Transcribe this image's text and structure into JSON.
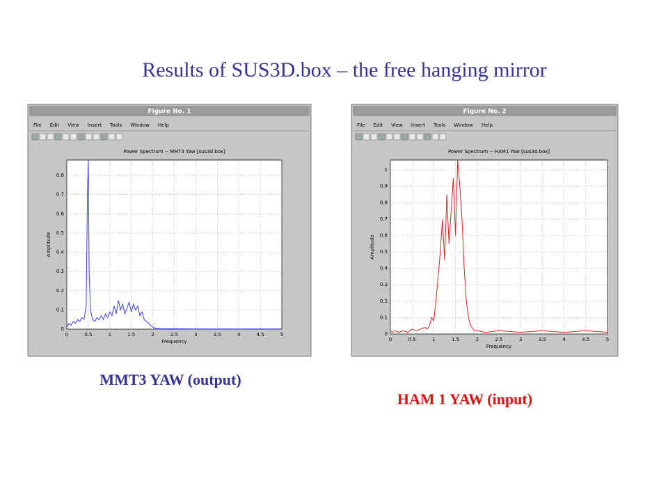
{
  "slide_title": "Results of SUS3D.box – the free hanging mirror",
  "windows": [
    {
      "title": "Figure No. 1",
      "menu": [
        "File",
        "Edit",
        "View",
        "Insert",
        "Tools",
        "Window",
        "Help"
      ]
    },
    {
      "title": "Figure No. 2",
      "menu": [
        "File",
        "Edit",
        "View",
        "Insert",
        "Tools",
        "Window",
        "Help"
      ]
    }
  ],
  "chart_data": [
    {
      "type": "line",
      "title": "Power Spectrum -- MMT3 Yaw [sus3d.box]",
      "xlabel": "Frequency",
      "ylabel": "Amplitude",
      "color": "#3b3bff",
      "grid": true,
      "xlim": [
        0,
        5
      ],
      "xticks": [
        0,
        0.5,
        1,
        1.5,
        2,
        2.5,
        3,
        3.5,
        4,
        4.5,
        5
      ],
      "ylim": [
        0,
        0.88
      ],
      "yticks": [
        0,
        0.1,
        0.2,
        0.3,
        0.4,
        0.5,
        0.6,
        0.7,
        0.8
      ],
      "x": [
        0,
        0.05,
        0.1,
        0.15,
        0.2,
        0.25,
        0.3,
        0.35,
        0.4,
        0.45,
        0.48,
        0.5,
        0.52,
        0.55,
        0.6,
        0.65,
        0.7,
        0.75,
        0.8,
        0.85,
        0.9,
        0.95,
        1,
        1.05,
        1.1,
        1.15,
        1.2,
        1.25,
        1.3,
        1.35,
        1.4,
        1.45,
        1.5,
        1.55,
        1.6,
        1.65,
        1.7,
        1.75,
        1.8,
        1.85,
        1.9,
        1.95,
        2,
        2.05,
        2.1,
        2.2,
        2.5,
        3,
        3.5,
        4,
        4.5,
        5
      ],
      "values": [
        0.01,
        0.03,
        0.02,
        0.04,
        0.03,
        0.05,
        0.04,
        0.06,
        0.05,
        0.12,
        0.7,
        0.88,
        0.3,
        0.1,
        0.05,
        0.04,
        0.06,
        0.05,
        0.07,
        0.05,
        0.08,
        0.06,
        0.09,
        0.07,
        0.12,
        0.08,
        0.15,
        0.1,
        0.13,
        0.08,
        0.11,
        0.14,
        0.09,
        0.13,
        0.1,
        0.12,
        0.07,
        0.09,
        0.05,
        0.04,
        0.03,
        0.02,
        0.01,
        0.005,
        0.003,
        0.002,
        0.002,
        0.001,
        0.001,
        0.001,
        0.001,
        0.001
      ]
    },
    {
      "type": "line",
      "title": "Power Spectrum -- HAM1 Yaw [sus3d.box]",
      "xlabel": "Frequency",
      "ylabel": "Amplitude",
      "color": "#e02020",
      "grid": true,
      "xlim": [
        0,
        5
      ],
      "xticks": [
        0,
        0.5,
        1,
        1.5,
        2,
        2.5,
        3,
        3.5,
        4,
        4.5,
        5
      ],
      "ylim": [
        0,
        1.06
      ],
      "yticks": [
        0,
        0.1,
        0.2,
        0.3,
        0.4,
        0.5,
        0.6,
        0.7,
        0.8,
        0.9,
        1
      ],
      "x": [
        0,
        0.05,
        0.1,
        0.2,
        0.3,
        0.4,
        0.5,
        0.6,
        0.7,
        0.8,
        0.85,
        0.9,
        0.95,
        1,
        1.05,
        1.1,
        1.15,
        1.2,
        1.25,
        1.3,
        1.35,
        1.4,
        1.45,
        1.5,
        1.55,
        1.6,
        1.65,
        1.7,
        1.75,
        1.8,
        1.85,
        1.9,
        1.95,
        2,
        2.2,
        2.5,
        3,
        3.5,
        4,
        4.5,
        5
      ],
      "values": [
        0.02,
        0.01,
        0.02,
        0.01,
        0.02,
        0.01,
        0.03,
        0.02,
        0.03,
        0.04,
        0.03,
        0.05,
        0.1,
        0.08,
        0.2,
        0.35,
        0.5,
        0.7,
        0.45,
        0.85,
        0.55,
        0.75,
        0.95,
        0.6,
        1.06,
        0.9,
        0.7,
        0.4,
        0.2,
        0.1,
        0.05,
        0.03,
        0.02,
        0.02,
        0.01,
        0.02,
        0.01,
        0.02,
        0.01,
        0.02,
        0.01
      ]
    }
  ],
  "captions": [
    "MMT3 YAW (output)",
    "HAM 1 YAW (input)"
  ]
}
